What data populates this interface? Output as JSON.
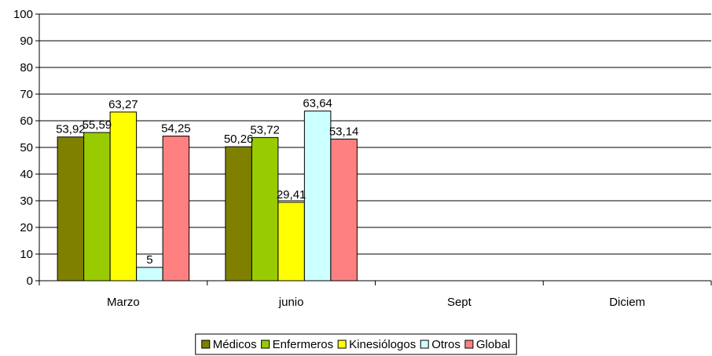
{
  "chart_data": {
    "type": "bar",
    "categories": [
      "Marzo",
      "junio",
      "Sept",
      "Diciem"
    ],
    "series": [
      {
        "name": "Médicos",
        "color": "#808000",
        "values": [
          53.92,
          50.26,
          null,
          null
        ]
      },
      {
        "name": "Enfermeros",
        "color": "#99CC00",
        "values": [
          55.59,
          53.72,
          null,
          null
        ]
      },
      {
        "name": "Kinesiólogos",
        "color": "#FFFF00",
        "values": [
          63.27,
          29.41,
          null,
          null
        ]
      },
      {
        "name": "Otros",
        "color": "#CCFFFF",
        "values": [
          5,
          63.64,
          null,
          null
        ]
      },
      {
        "name": "Global",
        "color": "#FF8080",
        "values": [
          54.25,
          53.14,
          null,
          null
        ]
      }
    ],
    "data_labels": [
      [
        "53,92",
        "50,26",
        "",
        ""
      ],
      [
        "55,59",
        "53,72",
        "",
        ""
      ],
      [
        "63,27",
        "29,41",
        "",
        ""
      ],
      [
        "5",
        "63,64",
        "",
        ""
      ],
      [
        "54,25",
        "53,14",
        "",
        ""
      ]
    ],
    "ylim": [
      0,
      100
    ],
    "ytick_labels": [
      "0",
      "10",
      "20",
      "30",
      "40",
      "50",
      "60",
      "70",
      "80",
      "90",
      "100"
    ],
    "grid": true,
    "legend_position": "bottom-center",
    "title": "",
    "xlabel": "",
    "ylabel": ""
  }
}
